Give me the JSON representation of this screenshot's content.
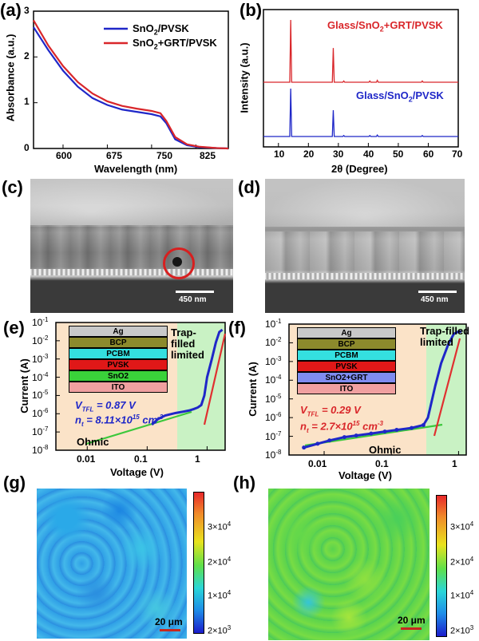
{
  "panels": {
    "a": {
      "letter": "(a)"
    },
    "b": {
      "letter": "(b)"
    },
    "c": {
      "letter": "(c)"
    },
    "d": {
      "letter": "(d)"
    },
    "e": {
      "letter": "(e)"
    },
    "f": {
      "letter": "(f)"
    },
    "g": {
      "letter": "(g)"
    },
    "h": {
      "letter": "(h)"
    }
  },
  "panel_a": {
    "xlabel": "Wavelength (nm)",
    "ylabel": "Absorbance (a.u.)",
    "xticks": [
      "600",
      "675",
      "750",
      "825"
    ],
    "yticks": [
      "0",
      "1",
      "2",
      "3"
    ],
    "legend": [
      "SnO2/PVSK",
      "SnO2+GRT/PVSK"
    ],
    "colors": {
      "blue": "#1f27c8",
      "red": "#d9262a"
    }
  },
  "panel_b": {
    "xlabel": "2θ (Degree)",
    "ylabel": "Intensity (a.u.)",
    "xticks": [
      "10",
      "20",
      "30",
      "40",
      "50",
      "60",
      "70"
    ],
    "label_top": "Glass/SnO2+GRT/PVSK",
    "label_bottom": "Glass/SnO2/PVSK"
  },
  "panel_c": {
    "scalebar": "450 nm"
  },
  "panel_d": {
    "scalebar": "450 nm"
  },
  "panel_e": {
    "xlabel": "Voltage (V)",
    "ylabel": "Current (A)",
    "xticks": [
      "0.01",
      "0.1",
      "1"
    ],
    "yticks": [
      "10-1",
      "10-2",
      "10-3",
      "10-4",
      "10-5",
      "10-6",
      "10-7",
      "10-8"
    ],
    "layers": [
      "Ag",
      "BCP",
      "PCBM",
      "PVSK",
      "SnO2",
      "ITO"
    ],
    "vtfl": "VTFL = 0.87 V",
    "nt": "nt = 8.11×1015 cm-3",
    "region_ohmic": "Ohmic",
    "region_trap": "Trap-filled limited"
  },
  "panel_f": {
    "xlabel": "Voltage (V)",
    "ylabel": "Current (A)",
    "xticks": [
      "0.01",
      "0.1",
      "1"
    ],
    "yticks": [
      "10-1",
      "10-2",
      "10-3",
      "10-4",
      "10-5",
      "10-6",
      "10-7",
      "10-8"
    ],
    "layers": [
      "Ag",
      "BCP",
      "PCBM",
      "PVSK",
      "SnO2+GRT",
      "ITO"
    ],
    "vtfl": "VTFL = 0.29 V",
    "nt": "nt = 2.7×1015 cm-3",
    "region_ohmic": "Ohmic",
    "region_trap": "Trap-filled limited"
  },
  "panel_g": {
    "scalebar": "20 μm",
    "cbar_ticks": [
      "3×104",
      "2×104",
      "1×104",
      "2×103"
    ]
  },
  "panel_h": {
    "scalebar": "20 μm",
    "cbar_ticks": [
      "3×104",
      "2×104",
      "1×104",
      "2×103"
    ]
  },
  "chart_data": [
    {
      "type": "line",
      "panel": "a",
      "xlim": [
        550,
        880
      ],
      "ylim": [
        0,
        3
      ],
      "series": [
        {
          "name": "SnO2/PVSK",
          "x": [
            550,
            575,
            600,
            625,
            650,
            675,
            700,
            725,
            750,
            765,
            775,
            790,
            810,
            830,
            860,
            880
          ],
          "values": [
            2.65,
            2.15,
            1.7,
            1.35,
            1.1,
            0.95,
            0.85,
            0.8,
            0.75,
            0.7,
            0.55,
            0.2,
            0.07,
            0.03,
            0.01,
            0.0
          ]
        },
        {
          "name": "SnO2+GRT/PVSK",
          "x": [
            550,
            575,
            600,
            625,
            650,
            675,
            700,
            725,
            750,
            765,
            775,
            790,
            810,
            830,
            860,
            880
          ],
          "values": [
            2.8,
            2.25,
            1.8,
            1.45,
            1.2,
            1.03,
            0.93,
            0.87,
            0.82,
            0.77,
            0.6,
            0.25,
            0.09,
            0.04,
            0.01,
            0.0
          ]
        }
      ]
    },
    {
      "type": "line",
      "panel": "b",
      "xlim": [
        5,
        70
      ],
      "peaks_deg": [
        14.1,
        28.3,
        31.8,
        40.5,
        43.0,
        58.0
      ],
      "series": [
        {
          "name": "Glass/SnO2+GRT/PVSK",
          "relative_heights": [
            1.0,
            0.55,
            0.02,
            0.02,
            0.03,
            0.02
          ]
        },
        {
          "name": "Glass/SnO2/PVSK",
          "relative_heights": [
            1.0,
            0.55,
            0.02,
            0.02,
            0.03,
            0.02
          ]
        }
      ]
    },
    {
      "type": "scatter",
      "panel": "e",
      "xscale": "log",
      "yscale": "log",
      "xlim": [
        0.003,
        2
      ],
      "ylim": [
        1e-08,
        0.1
      ],
      "x": [
        0.12,
        0.15,
        0.2,
        0.3,
        0.4,
        0.5,
        0.6,
        0.7,
        0.8,
        0.9,
        1.0,
        1.2,
        1.4,
        1.6,
        1.8
      ],
      "values": [
        2.5e-07,
        5e-07,
        8e-07,
        1.1e-06,
        1.3e-06,
        1.5e-06,
        1.8e-06,
        2.2e-06,
        3e-06,
        1e-05,
        0.0001,
        0.001,
        0.008,
        0.03,
        0.04
      ]
    },
    {
      "type": "scatter",
      "panel": "f",
      "xscale": "log",
      "yscale": "log",
      "xlim": [
        0.003,
        1.3
      ],
      "ylim": [
        1e-08,
        0.1
      ],
      "x": [
        0.005,
        0.008,
        0.012,
        0.02,
        0.03,
        0.05,
        0.08,
        0.12,
        0.2,
        0.3,
        0.35,
        0.45,
        0.55,
        0.7,
        0.85,
        1.0,
        1.1
      ],
      "values": [
        2.5e-08,
        4e-08,
        6e-08,
        9e-08,
        1.1e-07,
        1.4e-07,
        1.8e-07,
        2.2e-07,
        2.8e-07,
        4e-07,
        1e-06,
        5e-05,
        0.0008,
        0.008,
        0.03,
        0.04,
        0.04
      ]
    }
  ]
}
